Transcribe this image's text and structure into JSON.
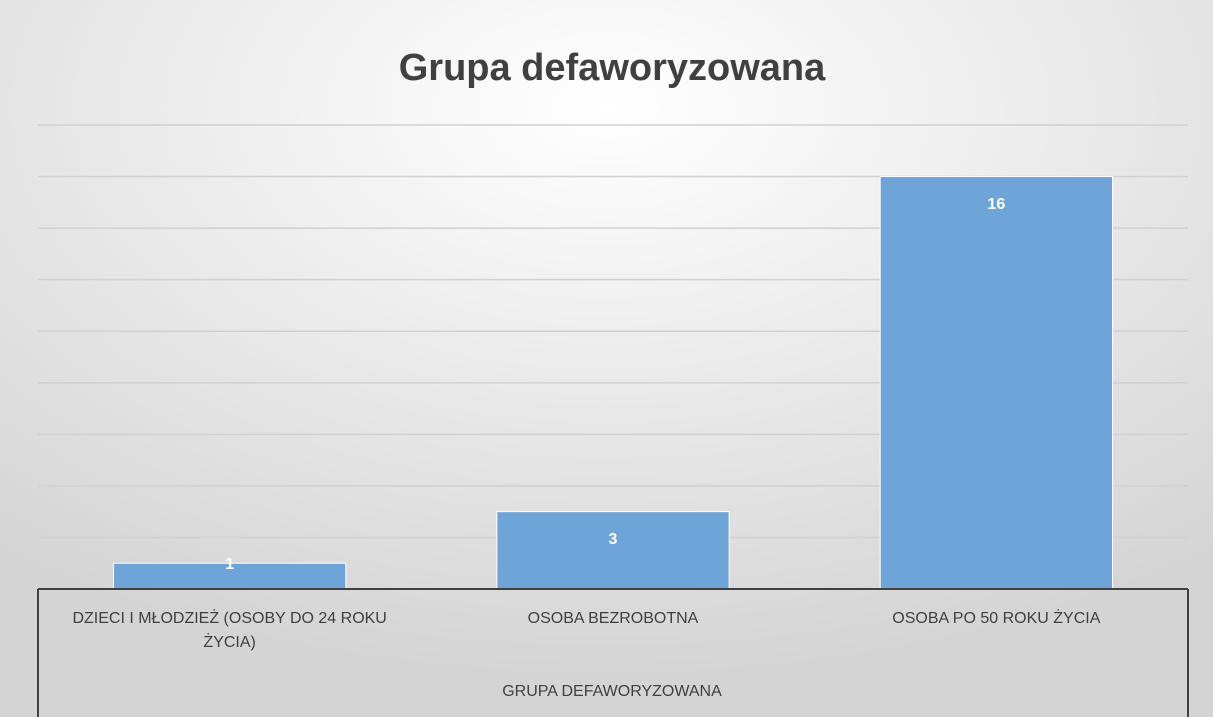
{
  "chart_data": {
    "type": "bar",
    "title": "Grupa defaworyzowana",
    "categories": [
      "DZIECI I MŁODZIEŻ (OSOBY DO 24 ROKU ŻYCIA)",
      "OSOBA BEZROBOTNA",
      "OSOBA PO 50 ROKU ŻYCIA"
    ],
    "values": [
      1,
      3,
      16
    ],
    "color": "#6fa4d8",
    "x_label": "GRUPA DEFAWORYZOWANA",
    "ylim": [
      0,
      18
    ],
    "yticks": [
      0,
      2,
      4,
      6,
      8,
      10,
      12,
      14,
      16,
      18
    ],
    "grid": true
  }
}
